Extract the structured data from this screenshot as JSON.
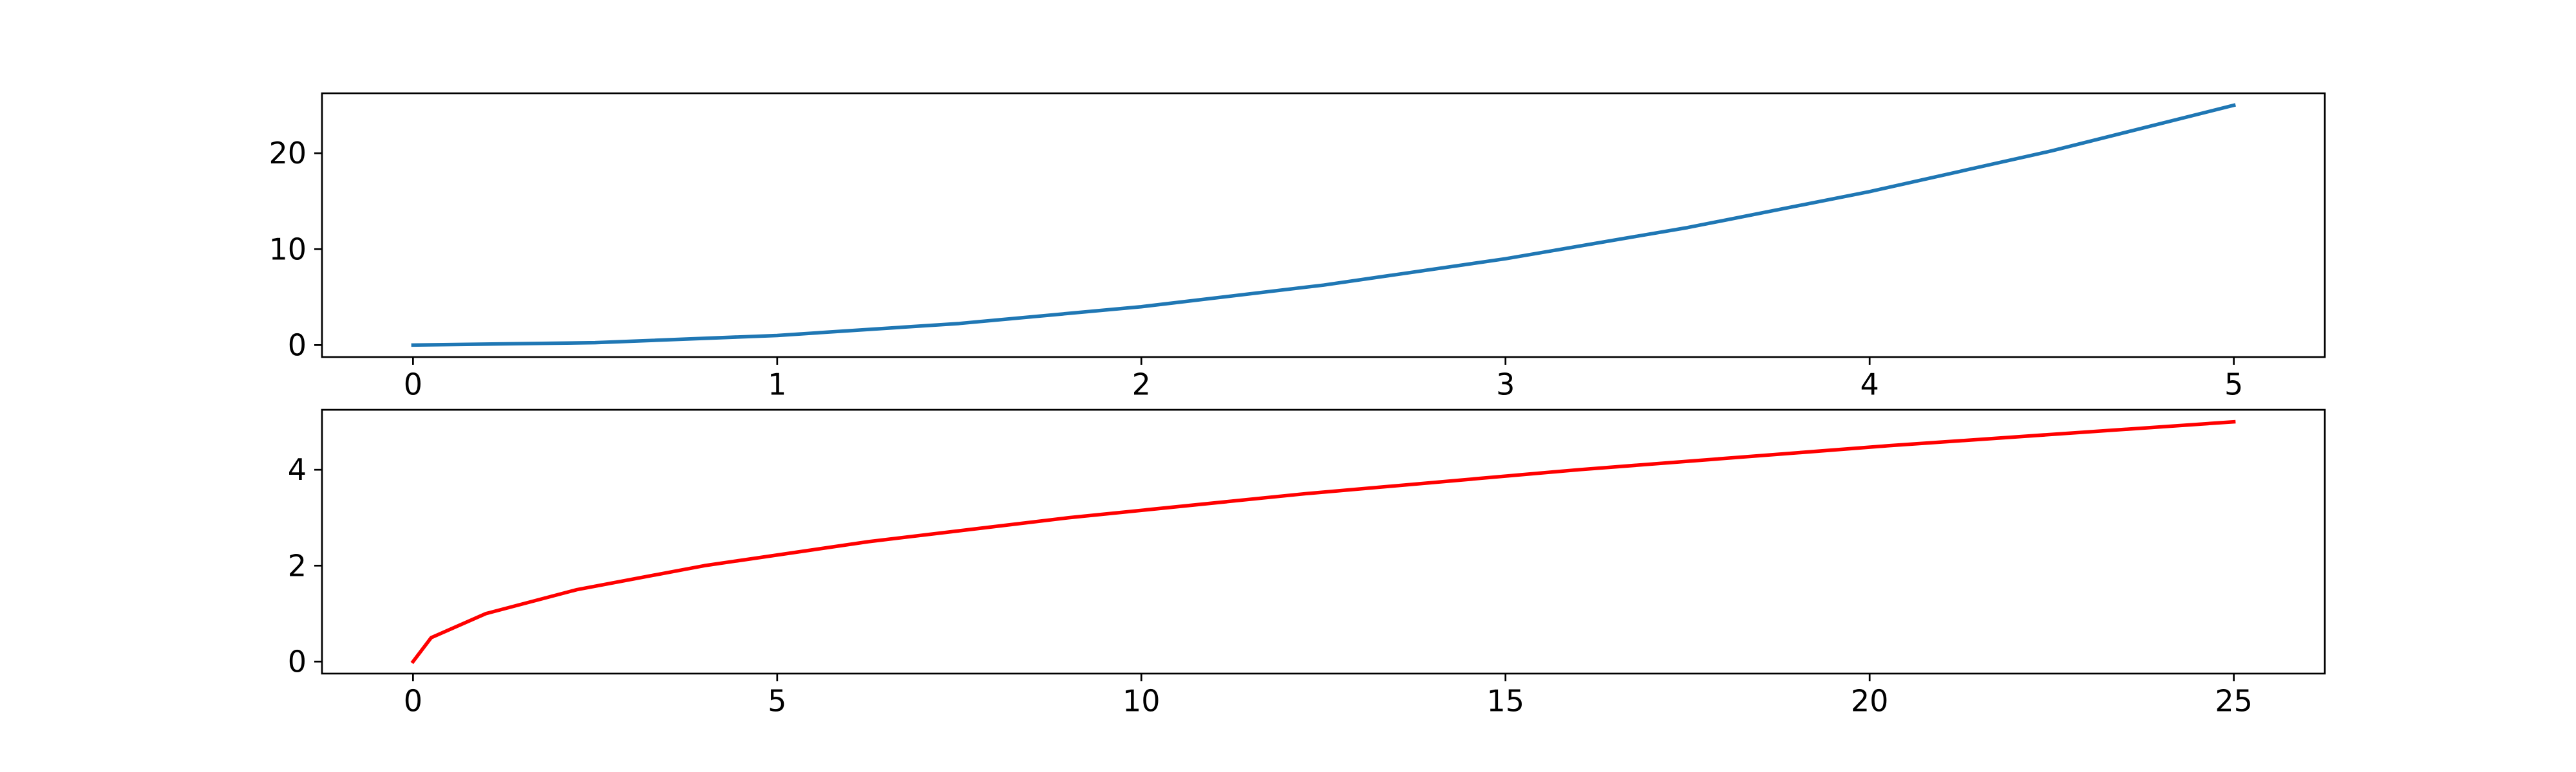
{
  "chart_data": [
    {
      "type": "line",
      "title": "",
      "xlabel": "",
      "ylabel": "",
      "xlim": [
        -0.25,
        5.25
      ],
      "ylim": [
        -1.25,
        26.25
      ],
      "x_ticks": [
        0,
        1,
        2,
        3,
        4,
        5
      ],
      "y_ticks": [
        0,
        10,
        20
      ],
      "x_tick_labels": [
        "0",
        "1",
        "2",
        "3",
        "4",
        "5"
      ],
      "y_tick_labels": [
        "0",
        "10",
        "20"
      ],
      "grid": false,
      "series": [
        {
          "color": "#1f77b4",
          "x": [
            0,
            0.5,
            1,
            1.5,
            2,
            2.5,
            3,
            3.5,
            4,
            4.5,
            5
          ],
          "y": [
            0,
            0.25,
            1,
            2.25,
            4,
            6.25,
            9,
            12.25,
            16,
            20.25,
            25
          ]
        }
      ]
    },
    {
      "type": "line",
      "title": "",
      "xlabel": "",
      "ylabel": "",
      "xlim": [
        -1.25,
        26.25
      ],
      "ylim": [
        -0.25,
        5.25
      ],
      "x_ticks": [
        0,
        5,
        10,
        15,
        20,
        25
      ],
      "y_ticks": [
        0,
        2,
        4
      ],
      "x_tick_labels": [
        "0",
        "5",
        "10",
        "15",
        "20",
        "25"
      ],
      "y_tick_labels": [
        "0",
        "2",
        "4"
      ],
      "grid": false,
      "series": [
        {
          "color": "#ff0000",
          "x": [
            0,
            0.25,
            1,
            2.25,
            4,
            6.25,
            9,
            12.25,
            16,
            20.25,
            25
          ],
          "y": [
            0,
            0.5,
            1,
            1.5,
            2,
            2.5,
            3,
            3.5,
            4,
            4.5,
            5
          ]
        }
      ]
    }
  ]
}
